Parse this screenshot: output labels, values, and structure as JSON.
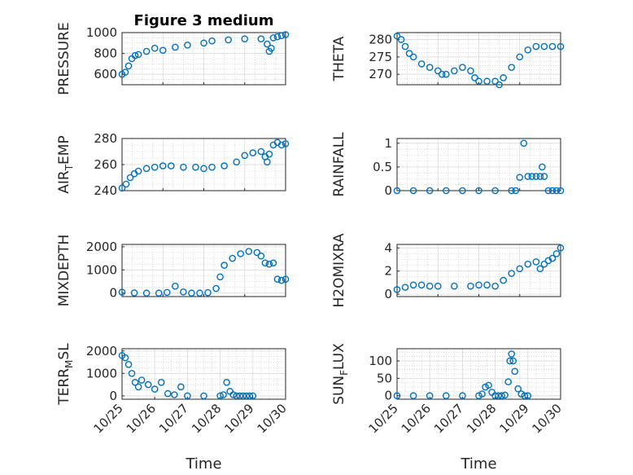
{
  "colors": {
    "marker": "#0072BD",
    "axis": "#262626",
    "major_grid": "#d9d9d9",
    "minor_grid": "#bdbdbd"
  },
  "chart_data": [
    {
      "type": "scatter",
      "title": "Figure 3 medium",
      "ylabel": "PRESSURE",
      "xlabel": "",
      "xlim": [
        "10/25",
        "10/29"
      ],
      "ylim": [
        500,
        1000
      ],
      "yticks": [
        600,
        800,
        1000
      ],
      "xticks": [
        "10/25",
        "10/26",
        "10/27",
        "10/28",
        "10/29"
      ],
      "grid": true,
      "minor_grid": true,
      "x": [
        0.0,
        0.08,
        0.16,
        0.24,
        0.32,
        0.4,
        0.6,
        0.8,
        1.0,
        1.3,
        1.6,
        2.0,
        2.2,
        2.6,
        3.0,
        3.4,
        3.55,
        3.6,
        3.65,
        3.7,
        3.8,
        3.9,
        4.0
      ],
      "y": [
        600,
        620,
        680,
        750,
        780,
        790,
        820,
        850,
        830,
        860,
        880,
        900,
        920,
        930,
        940,
        940,
        890,
        820,
        850,
        950,
        960,
        970,
        980
      ]
    },
    {
      "type": "scatter",
      "ylabel": "THETA",
      "xlabel": "",
      "xlim": [
        "10/25",
        "10/29"
      ],
      "ylim": [
        267,
        282
      ],
      "yticks": [
        270,
        275,
        280
      ],
      "xticks": [
        "10/25",
        "10/26",
        "10/27",
        "10/28",
        "10/29"
      ],
      "grid": true,
      "minor_grid": true,
      "x": [
        0.0,
        0.1,
        0.2,
        0.3,
        0.4,
        0.6,
        0.8,
        1.0,
        1.1,
        1.2,
        1.4,
        1.6,
        1.8,
        1.9,
        2.0,
        2.2,
        2.4,
        2.5,
        2.6,
        2.8,
        3.0,
        3.2,
        3.4,
        3.6,
        3.8,
        4.0
      ],
      "y": [
        281,
        280,
        278,
        276,
        275,
        273,
        272,
        271,
        270,
        270,
        271,
        272,
        271,
        269,
        268,
        268,
        268,
        267,
        269,
        272,
        275,
        277,
        278,
        278,
        278,
        278
      ]
    },
    {
      "type": "scatter",
      "ylabel": "AIR_TEMP",
      "xlabel": "",
      "xlim": [
        "10/25",
        "10/29"
      ],
      "ylim": [
        240,
        280
      ],
      "yticks": [
        240,
        260,
        280
      ],
      "xticks": [
        "10/25",
        "10/26",
        "10/27",
        "10/28",
        "10/29"
      ],
      "grid": true,
      "minor_grid": true,
      "x": [
        0.0,
        0.1,
        0.2,
        0.3,
        0.4,
        0.6,
        0.8,
        1.0,
        1.2,
        1.5,
        1.8,
        2.0,
        2.2,
        2.5,
        2.8,
        3.0,
        3.2,
        3.4,
        3.5,
        3.55,
        3.6,
        3.7,
        3.8,
        3.9,
        4.0
      ],
      "y": [
        242,
        245,
        250,
        253,
        255,
        257,
        258,
        259,
        259,
        258,
        258,
        257,
        258,
        259,
        262,
        267,
        269,
        270,
        266,
        262,
        268,
        275,
        277,
        275,
        276
      ]
    },
    {
      "type": "scatter",
      "ylabel": "RAINFALL",
      "xlabel": "",
      "xlim": [
        "10/25",
        "10/29"
      ],
      "ylim": [
        0,
        1.1
      ],
      "yticks": [
        0,
        0.5,
        1
      ],
      "xticks": [
        "10/25",
        "10/26",
        "10/27",
        "10/28",
        "10/29"
      ],
      "grid": true,
      "minor_grid": true,
      "x": [
        0.0,
        0.4,
        0.8,
        1.2,
        1.6,
        2.0,
        2.4,
        2.8,
        2.9,
        3.0,
        3.1,
        3.2,
        3.3,
        3.4,
        3.5,
        3.55,
        3.6,
        3.7,
        3.8,
        3.9,
        4.0
      ],
      "y": [
        0,
        0,
        0,
        0,
        0,
        0,
        0,
        0,
        0,
        0.28,
        1.0,
        0.3,
        0.3,
        0.3,
        0.3,
        0.5,
        0.3,
        0,
        0,
        0,
        0
      ]
    },
    {
      "type": "scatter",
      "ylabel": "MIXDEPTH",
      "xlabel": "",
      "xlim": [
        "10/25",
        "10/29"
      ],
      "ylim": [
        -150,
        2100
      ],
      "yticks": [
        0,
        1000,
        2000
      ],
      "xticks": [
        "10/25",
        "10/26",
        "10/27",
        "10/28",
        "10/29"
      ],
      "grid": true,
      "minor_grid": true,
      "x": [
        0.0,
        0.3,
        0.6,
        0.9,
        1.1,
        1.3,
        1.5,
        1.7,
        1.9,
        2.1,
        2.3,
        2.4,
        2.5,
        2.7,
        2.9,
        3.1,
        3.3,
        3.4,
        3.5,
        3.6,
        3.7,
        3.8,
        3.9,
        4.0
      ],
      "y": [
        40,
        10,
        0,
        0,
        30,
        300,
        50,
        0,
        0,
        20,
        200,
        700,
        1200,
        1500,
        1700,
        1800,
        1750,
        1600,
        1300,
        1250,
        1300,
        600,
        550,
        600
      ]
    },
    {
      "type": "scatter",
      "ylabel": "H2OMIXRA",
      "xlabel": "",
      "xlim": [
        "10/25",
        "10/29"
      ],
      "ylim": [
        -0.2,
        4.3
      ],
      "yticks": [
        0,
        2,
        4
      ],
      "xticks": [
        "10/25",
        "10/26",
        "10/27",
        "10/28",
        "10/29"
      ],
      "grid": true,
      "minor_grid": true,
      "x": [
        0.0,
        0.2,
        0.4,
        0.6,
        0.8,
        1.0,
        1.4,
        1.8,
        2.0,
        2.2,
        2.4,
        2.6,
        2.8,
        3.0,
        3.2,
        3.4,
        3.5,
        3.6,
        3.7,
        3.8,
        3.9,
        4.0
      ],
      "y": [
        0.4,
        0.6,
        0.8,
        0.8,
        0.7,
        0.7,
        0.7,
        0.7,
        0.8,
        0.8,
        0.7,
        1.2,
        1.8,
        2.2,
        2.6,
        2.8,
        2.2,
        2.6,
        2.9,
        3.1,
        3.5,
        4.0
      ]
    },
    {
      "type": "scatter",
      "ylabel": "TERR_MSL",
      "xlabel": "Time",
      "xlim": [
        "10/25",
        "10/30"
      ],
      "ylim": [
        -150,
        2100
      ],
      "yticks": [
        0,
        1000,
        2000
      ],
      "xticks": [
        "10/25",
        "10/26",
        "10/27",
        "10/28",
        "10/29",
        "10/30"
      ],
      "grid": true,
      "minor_grid": true,
      "x": [
        0.0,
        0.1,
        0.2,
        0.3,
        0.4,
        0.5,
        0.6,
        0.8,
        1.0,
        1.2,
        1.4,
        1.6,
        1.8,
        2.0,
        2.5,
        3.0,
        3.1,
        3.2,
        3.3,
        3.4,
        3.5,
        3.6,
        3.7,
        3.8,
        3.9,
        4.0
      ],
      "y": [
        1800,
        1700,
        1400,
        1000,
        600,
        400,
        700,
        500,
        300,
        600,
        100,
        50,
        400,
        0,
        0,
        0,
        50,
        600,
        200,
        50,
        0,
        0,
        0,
        0,
        0,
        0
      ]
    },
    {
      "type": "scatter",
      "ylabel": "SUN_FLUX",
      "xlabel": "Time",
      "xlim": [
        "10/25",
        "10/30"
      ],
      "ylim": [
        -10,
        135
      ],
      "yticks": [
        0,
        50,
        100
      ],
      "xticks": [
        "10/25",
        "10/26",
        "10/27",
        "10/28",
        "10/29",
        "10/30"
      ],
      "grid": true,
      "minor_grid": true,
      "x": [
        0.0,
        0.5,
        1.0,
        1.5,
        2.0,
        2.5,
        2.6,
        2.7,
        2.8,
        2.9,
        3.0,
        3.1,
        3.2,
        3.3,
        3.4,
        3.45,
        3.5,
        3.55,
        3.6,
        3.7,
        3.8,
        3.9,
        4.0
      ],
      "y": [
        0,
        0,
        0,
        0,
        0,
        0,
        5,
        25,
        30,
        10,
        0,
        0,
        0,
        2,
        40,
        100,
        120,
        100,
        70,
        20,
        5,
        0,
        0
      ]
    }
  ]
}
